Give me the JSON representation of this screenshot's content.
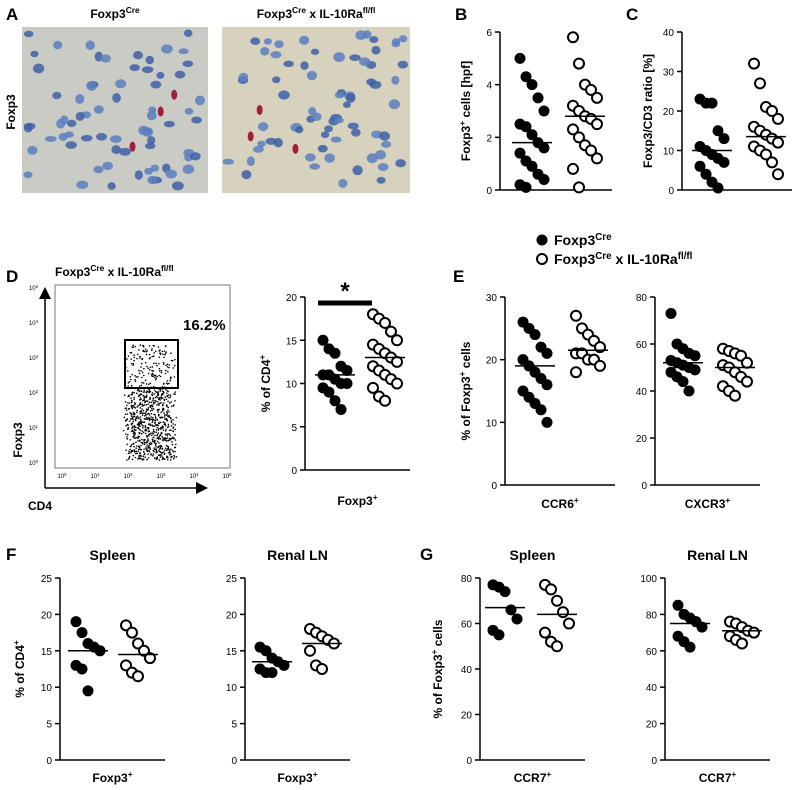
{
  "panel_letters": [
    "A",
    "B",
    "C",
    "D",
    "E",
    "F",
    "G"
  ],
  "histology": {
    "row_label": "Foxp3",
    "titles": [
      [
        "Foxp3",
        "Cre"
      ],
      [
        "Foxp3",
        "Cre",
        " x IL-10Ra",
        "fl/fl"
      ]
    ]
  },
  "legend": {
    "series": [
      {
        "name": [
          "Foxp3",
          "Cre"
        ],
        "marker": "filled"
      },
      {
        "name": [
          "Foxp3",
          "Cre",
          " x IL-10Ra",
          "fl/fl"
        ],
        "marker": "open"
      }
    ]
  },
  "flow": {
    "title": [
      "Foxp3",
      "Cre",
      " x IL-10Ra",
      "fl/fl"
    ],
    "y_label": "Foxp3",
    "x_label": "CD4",
    "gate": {
      "value": 16.2,
      "label": "16.2%"
    },
    "yticks": [
      [
        "10",
        "0"
      ],
      [
        "10",
        "1"
      ],
      [
        "10",
        "2"
      ],
      [
        "10",
        "3"
      ],
      [
        "10",
        "4"
      ],
      [
        "10",
        "5"
      ]
    ],
    "xticks": [
      [
        "10",
        "0"
      ],
      [
        "10",
        "1"
      ],
      [
        "10",
        "2"
      ],
      [
        "10",
        "3"
      ],
      [
        "10",
        "4"
      ],
      [
        "10",
        "5"
      ]
    ]
  },
  "chart_data": [
    {
      "type": "dot",
      "y_label": [
        "Foxp3",
        "+",
        " cells [hpf]"
      ],
      "ylim": [
        0,
        6
      ],
      "yticks": [
        0,
        2,
        4,
        6
      ],
      "series": [
        {
          "color": "#000",
          "marker": "filled",
          "values": [
            5,
            4.3,
            4,
            3.5,
            3,
            2.5,
            2.4,
            2.1,
            1.8,
            1.6,
            1.4,
            1.1,
            0.9,
            0.6,
            0.4,
            0.2,
            0.1
          ],
          "mean": 1.8
        },
        {
          "color": "#000",
          "marker": "open",
          "values": [
            5.8,
            4.8,
            4,
            3.8,
            3.5,
            3.2,
            3,
            2.8,
            2.7,
            2.5,
            2.3,
            2,
            1.7,
            1.5,
            1.2,
            0.8,
            0.1
          ],
          "mean": 2.8
        }
      ]
    },
    {
      "type": "dot",
      "y_label": "Foxp3/CD3 ratio [%]",
      "ylim": [
        0,
        40
      ],
      "yticks": [
        0,
        10,
        20,
        30,
        40
      ],
      "series": [
        {
          "color": "#000",
          "marker": "filled",
          "values": [
            23,
            22,
            22,
            15,
            13,
            11,
            10,
            9,
            8,
            7,
            6,
            4,
            2,
            0.5
          ],
          "mean": 10
        },
        {
          "color": "#000",
          "marker": "open",
          "values": [
            32,
            27,
            21,
            20,
            18,
            16,
            15,
            14,
            13,
            12,
            11,
            10,
            9,
            7,
            4
          ],
          "mean": 13.5
        }
      ]
    },
    {
      "type": "dot",
      "y_label": [
        "% of CD4",
        "+"
      ],
      "x_label": [
        "Foxp3",
        "+"
      ],
      "annotation": "*",
      "ylim": [
        0,
        20
      ],
      "yticks": [
        0,
        5,
        10,
        15,
        20
      ],
      "series": [
        {
          "color": "#000",
          "marker": "filled",
          "values": [
            15,
            14,
            13.5,
            12,
            11.5,
            11,
            11,
            10.5,
            10,
            10,
            9.5,
            9,
            8,
            7
          ],
          "mean": 11
        },
        {
          "color": "#000",
          "marker": "open",
          "values": [
            18,
            17.5,
            17,
            16,
            15,
            14.5,
            14,
            13.5,
            13,
            12.5,
            12,
            11.5,
            11,
            10.5,
            10,
            9.5,
            8.5,
            8
          ],
          "mean": 13
        }
      ]
    },
    {
      "type": "dot",
      "y_label": [
        "% of Foxp3",
        "+",
        " cells"
      ],
      "x_label": [
        "CCR6",
        "+"
      ],
      "ylim": [
        0,
        30
      ],
      "yticks": [
        0,
        10,
        20,
        30
      ],
      "series": [
        {
          "color": "#000",
          "marker": "filled",
          "values": [
            26,
            25,
            24,
            22,
            21,
            20,
            19,
            18,
            17,
            16,
            15,
            14,
            13,
            12,
            10
          ],
          "mean": 19
        },
        {
          "color": "#000",
          "marker": "open",
          "values": [
            27,
            25,
            24,
            23,
            22,
            21,
            21,
            20,
            20,
            19,
            18
          ],
          "mean": 21.5
        }
      ]
    },
    {
      "type": "dot",
      "x_label": [
        "CXCR3",
        "+"
      ],
      "ylim": [
        0,
        80
      ],
      "yticks": [
        0,
        20,
        40,
        60,
        80
      ],
      "series": [
        {
          "color": "#000",
          "marker": "filled",
          "values": [
            73,
            60,
            58,
            56,
            55,
            53,
            52,
            51,
            50,
            49,
            48,
            46,
            44,
            40
          ],
          "mean": 52
        },
        {
          "color": "#000",
          "marker": "open",
          "values": [
            58,
            57,
            56,
            55,
            52,
            51,
            50,
            48,
            46,
            44,
            42,
            40,
            38
          ],
          "mean": 50
        }
      ]
    },
    {
      "type": "dot",
      "title": "Spleen",
      "y_label": [
        "% of CD4",
        "+"
      ],
      "x_label": [
        "Foxp3",
        "+"
      ],
      "ylim": [
        0,
        25
      ],
      "yticks": [
        0,
        5,
        10,
        15,
        20,
        25
      ],
      "series": [
        {
          "color": "#000",
          "marker": "filled",
          "values": [
            19,
            17.5,
            16,
            15.5,
            15,
            13,
            12.5,
            9.5
          ],
          "mean": 15
        },
        {
          "color": "#000",
          "marker": "open",
          "values": [
            18.5,
            17.5,
            16,
            15,
            14,
            13,
            12,
            11.5
          ],
          "mean": 14.5
        }
      ]
    },
    {
      "type": "dot",
      "title": "Renal LN",
      "x_label": [
        "Foxp3",
        "+"
      ],
      "ylim": [
        0,
        25
      ],
      "yticks": [
        0,
        5,
        10,
        15,
        20,
        25
      ],
      "series": [
        {
          "color": "#000",
          "marker": "filled",
          "values": [
            15.5,
            15,
            14,
            13.5,
            13,
            12.5,
            12,
            12
          ],
          "mean": 13.5
        },
        {
          "color": "#000",
          "marker": "open",
          "values": [
            18,
            17.5,
            17,
            16.5,
            16,
            15,
            13,
            12.5
          ],
          "mean": 16
        }
      ]
    },
    {
      "type": "dot",
      "title": "Spleen",
      "y_label": [
        "% of Foxp3",
        "+",
        " cells"
      ],
      "x_label": [
        "CCR7",
        "+"
      ],
      "ylim": [
        0,
        80
      ],
      "yticks": [
        0,
        20,
        40,
        60,
        80
      ],
      "series": [
        {
          "color": "#000",
          "marker": "filled",
          "values": [
            77,
            76,
            74,
            66,
            62,
            57,
            55
          ],
          "mean": 67
        },
        {
          "color": "#000",
          "marker": "open",
          "values": [
            77,
            75,
            70,
            65,
            60,
            56,
            52,
            50
          ],
          "mean": 64
        }
      ]
    },
    {
      "type": "dot",
      "title": "Renal LN",
      "x_label": [
        "CCR7",
        "+"
      ],
      "ylim": [
        0,
        100
      ],
      "yticks": [
        0,
        20,
        40,
        60,
        80,
        100
      ],
      "series": [
        {
          "color": "#000",
          "marker": "filled",
          "values": [
            85,
            80,
            78,
            76,
            73,
            68,
            65,
            62
          ],
          "mean": 75
        },
        {
          "color": "#000",
          "marker": "open",
          "values": [
            76,
            75,
            73,
            71,
            70,
            68,
            66,
            64
          ],
          "mean": 71
        }
      ]
    }
  ]
}
